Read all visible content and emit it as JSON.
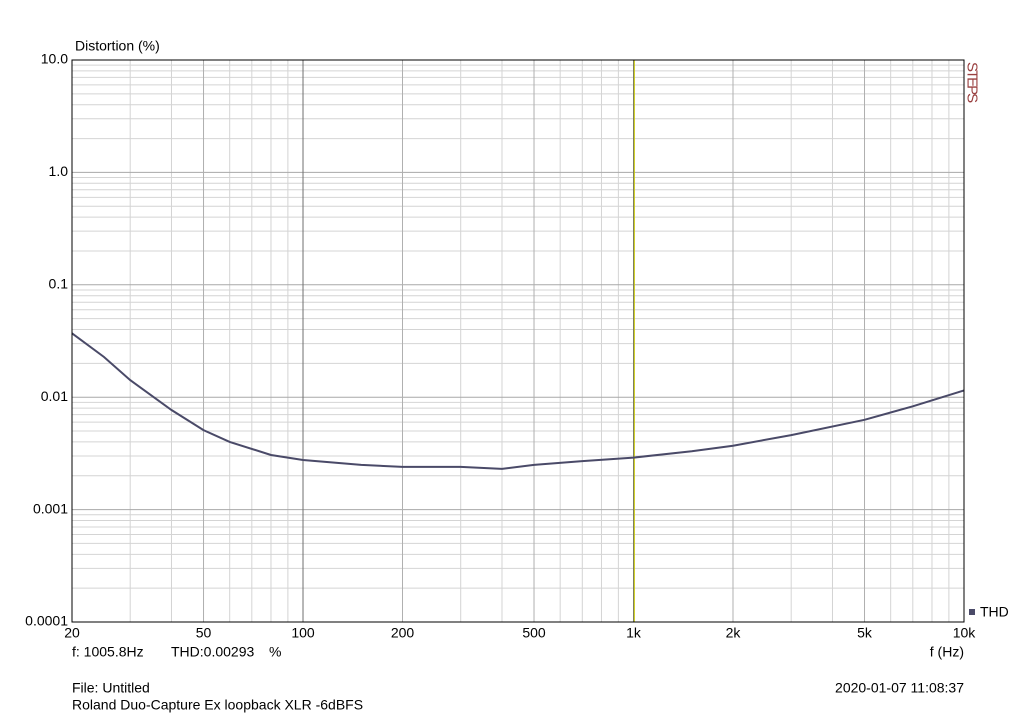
{
  "chart_data": {
    "type": "line",
    "y_label": "Distortion (%)",
    "x_label": "f (Hz)",
    "xscale": "log",
    "yscale": "log",
    "grid": true,
    "x": [
      20,
      25,
      30,
      40,
      50,
      60,
      80,
      100,
      150,
      200,
      300,
      400,
      500,
      700,
      1000,
      1500,
      2000,
      3000,
      5000,
      7000,
      10000
    ],
    "series": [
      {
        "name": "THD",
        "color": "#4a4a68",
        "values": [
          0.037,
          0.0228,
          0.0142,
          0.0077,
          0.0051,
          0.004,
          0.00306,
          0.00276,
          0.0025,
          0.0024,
          0.0024,
          0.0023,
          0.0025,
          0.0027,
          0.0029,
          0.0033,
          0.0037,
          0.0046,
          0.0063,
          0.0083,
          0.0115
        ]
      }
    ],
    "xlim": [
      20,
      10000
    ],
    "ylim": [
      0.0001,
      10
    ],
    "xticks": [
      20,
      50,
      100,
      200,
      500,
      {
        "value": 1000,
        "label": "1k"
      },
      {
        "value": 2000,
        "label": "2k"
      },
      {
        "value": 5000,
        "label": "5k"
      },
      {
        "value": 10000,
        "label": "10k"
      }
    ],
    "yticks": [
      {
        "value": 10,
        "label": "10.0"
      },
      {
        "value": 1,
        "label": "1.0"
      },
      0.1,
      0.01,
      0.001,
      0.0001
    ],
    "legend_position": "lower right",
    "cursor": {
      "value": 1005.8,
      "label": "f: 1005.8Hz",
      "color": "#c8c800"
    },
    "readout": "THD:0.00293",
    "readout_unit": "%",
    "watermark": "STEPS",
    "file": "File: Untitled",
    "description": "Roland Duo-Capture Ex loopback XLR -6dBFS",
    "timestamp": "2020-01-07 11:08:37"
  }
}
